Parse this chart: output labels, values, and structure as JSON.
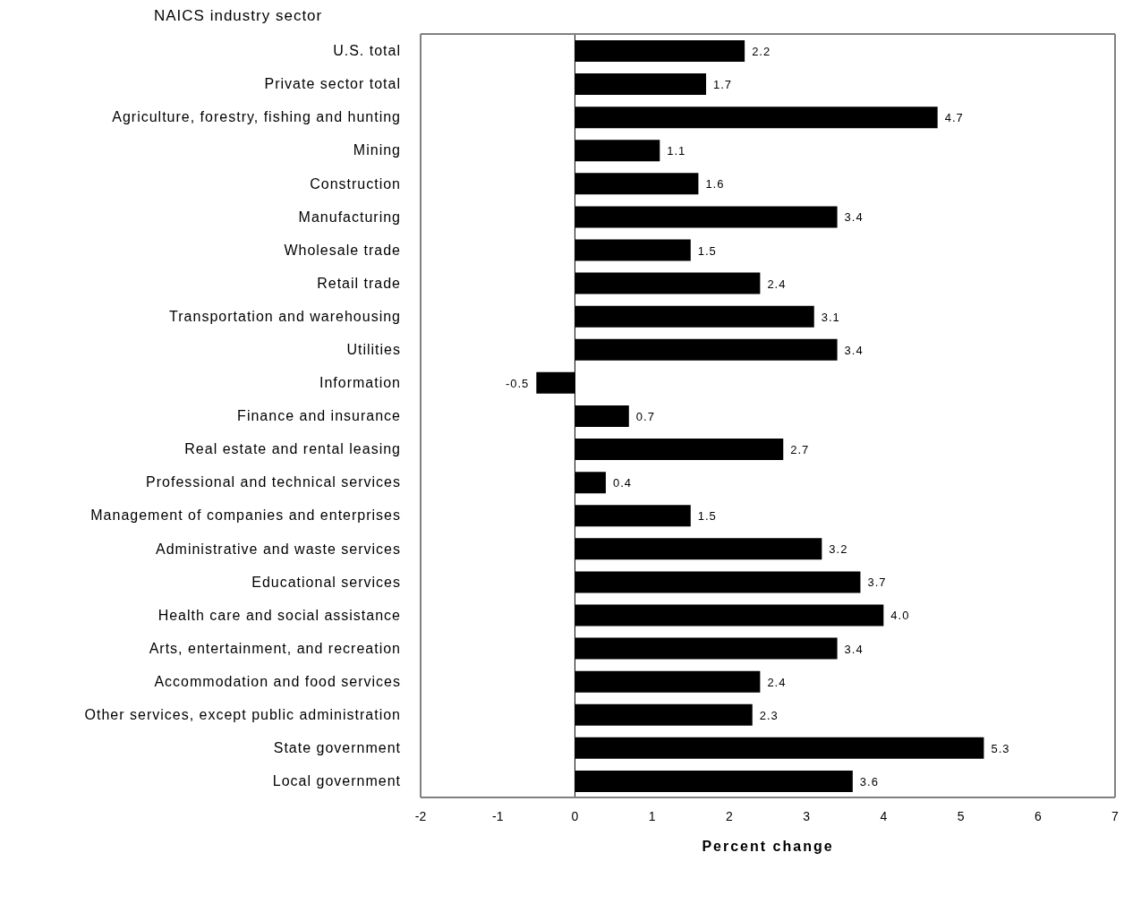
{
  "chart_data": {
    "type": "bar",
    "orientation": "horizontal",
    "ylabel": "NAICS industry sector",
    "xlabel": "Percent change",
    "categories": [
      "U.S. total",
      "Private sector total",
      "Agriculture, forestry, fishing and hunting",
      "Mining",
      "Construction",
      "Manufacturing",
      "Wholesale trade",
      "Retail trade",
      "Transportation and warehousing",
      "Utilities",
      "Information",
      "Finance and insurance",
      "Real estate and rental leasing",
      "Professional and technical services",
      "Management of companies and enterprises",
      "Administrative and waste services",
      "Educational services",
      "Health care and social assistance",
      "Arts, entertainment, and recreation",
      "Accommodation and food services",
      "Other services, except public administration",
      "State government",
      "Local government"
    ],
    "values": [
      2.2,
      1.7,
      4.7,
      1.1,
      1.6,
      3.4,
      1.5,
      2.4,
      3.1,
      3.4,
      -0.5,
      0.7,
      2.7,
      0.4,
      1.5,
      3.2,
      3.7,
      4.0,
      3.4,
      2.4,
      2.3,
      5.3,
      3.6
    ],
    "value_labels": [
      "2.2",
      "1.7",
      "4.7",
      "1.1",
      "1.6",
      "3.4",
      "1.5",
      "2.4",
      "3.1",
      "3.4",
      "-0.5",
      "0.7",
      "2.7",
      "0.4",
      "1.5",
      "3.2",
      "3.7",
      "4.0",
      "3.4",
      "2.4",
      "2.3",
      "5.3",
      "3.6"
    ],
    "color": "#000000",
    "xlim": [
      -2,
      7
    ],
    "xticks": [
      -2,
      -1,
      0,
      1,
      2,
      3,
      4,
      5,
      6,
      7
    ],
    "legend": false
  }
}
